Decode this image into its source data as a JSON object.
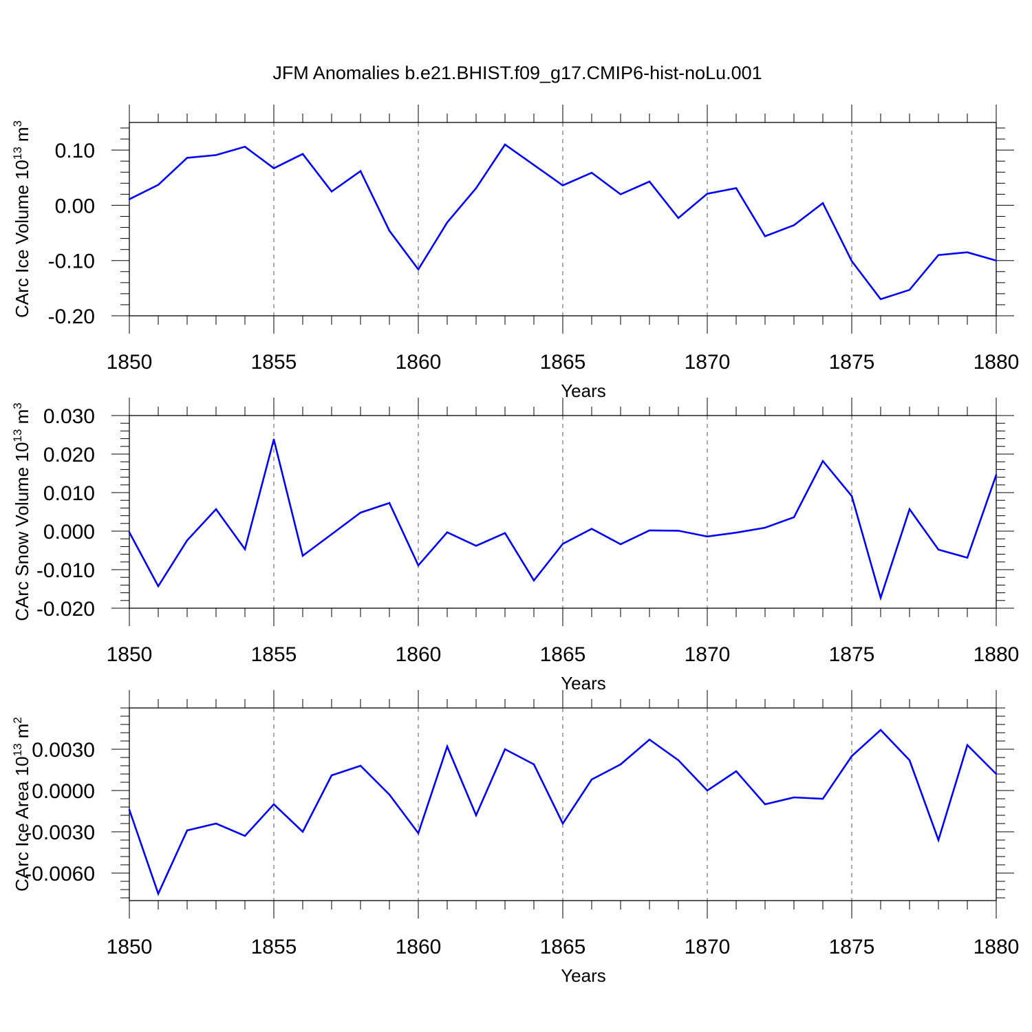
{
  "title": "JFM Anomalies b.e21.BHIST.f09_g17.CMIP6-hist-noLu.001",
  "colors": {
    "line": "#0000ff",
    "axis": "#000000",
    "grid": "#555555"
  },
  "chart_data": [
    {
      "type": "line",
      "xlabel": "Years",
      "ylabel": {
        "text": "CArc Ice Volume 10",
        "sup1": "13",
        "mid": " m",
        "sup2": "3"
      },
      "xlim": [
        1850,
        1880
      ],
      "xticks": [
        1850,
        1855,
        1860,
        1865,
        1870,
        1875,
        1880
      ],
      "ylim": [
        -0.2,
        0.15
      ],
      "yticks": [
        -0.2,
        -0.1,
        0.0,
        0.1
      ],
      "ytick_labels": [
        "-0.20",
        "-0.10",
        "0.00",
        "0.10"
      ],
      "x": [
        1850,
        1851,
        1852,
        1853,
        1854,
        1855,
        1856,
        1857,
        1858,
        1859,
        1860,
        1861,
        1862,
        1863,
        1864,
        1865,
        1866,
        1867,
        1868,
        1869,
        1870,
        1871,
        1872,
        1873,
        1874,
        1875,
        1876,
        1877,
        1878,
        1879,
        1880
      ],
      "series": [
        {
          "values": [
            0.011,
            0.037,
            0.086,
            0.091,
            0.106,
            0.067,
            0.093,
            0.025,
            0.062,
            -0.046,
            -0.116,
            -0.031,
            0.031,
            0.11,
            0.073,
            0.036,
            0.059,
            0.02,
            0.043,
            -0.023,
            0.021,
            0.031,
            -0.056,
            -0.036,
            0.004,
            -0.101,
            -0.17,
            -0.153,
            -0.09,
            -0.085,
            -0.1
          ]
        }
      ]
    },
    {
      "type": "line",
      "xlabel": "Years",
      "ylabel": {
        "text": "CArc Snow Volume 10",
        "sup1": "13",
        "mid": " m",
        "sup2": "3"
      },
      "xlim": [
        1850,
        1880
      ],
      "xticks": [
        1850,
        1855,
        1860,
        1865,
        1870,
        1875,
        1880
      ],
      "ylim": [
        -0.02,
        0.03
      ],
      "yticks": [
        -0.02,
        -0.01,
        0.0,
        0.01,
        0.02,
        0.03
      ],
      "ytick_labels": [
        "-0.020",
        "-0.010",
        "0.000",
        "0.010",
        "0.020",
        "0.030"
      ],
      "x": [
        1850,
        1851,
        1852,
        1853,
        1854,
        1855,
        1856,
        1857,
        1858,
        1859,
        1860,
        1861,
        1862,
        1863,
        1864,
        1865,
        1866,
        1867,
        1868,
        1869,
        1870,
        1871,
        1872,
        1873,
        1874,
        1875,
        1876,
        1877,
        1878,
        1879,
        1880
      ],
      "series": [
        {
          "values": [
            -0.0003,
            -0.0143,
            -0.0024,
            0.0057,
            -0.0047,
            0.0238,
            -0.0064,
            -0.0008,
            0.0048,
            0.0073,
            -0.0089,
            -0.0003,
            -0.0038,
            -0.0005,
            -0.0128,
            -0.0033,
            0.0006,
            -0.0034,
            0.0002,
            0.0001,
            -0.0014,
            -0.0004,
            0.0009,
            0.0036,
            0.0182,
            0.0091,
            -0.0173,
            0.0057,
            -0.0048,
            -0.0069,
            0.0146
          ]
        }
      ]
    },
    {
      "type": "line",
      "xlabel": "Years",
      "ylabel": {
        "text": "CArc Ice Area 10",
        "sup1": "13",
        "mid": " m",
        "sup2": "2"
      },
      "xlim": [
        1850,
        1880
      ],
      "xticks": [
        1850,
        1855,
        1860,
        1865,
        1870,
        1875,
        1880
      ],
      "ylim": [
        -0.008,
        0.006
      ],
      "yticks": [
        -0.006,
        -0.003,
        0.0,
        0.003
      ],
      "ytick_labels": [
        "-0.0060",
        "-0.0030",
        "0.0000",
        "0.0030"
      ],
      "x": [
        1850,
        1851,
        1852,
        1853,
        1854,
        1855,
        1856,
        1857,
        1858,
        1859,
        1860,
        1861,
        1862,
        1863,
        1864,
        1865,
        1866,
        1867,
        1868,
        1869,
        1870,
        1871,
        1872,
        1873,
        1874,
        1875,
        1876,
        1877,
        1878,
        1879,
        1880
      ],
      "series": [
        {
          "values": [
            -0.0014,
            -0.0075,
            -0.0029,
            -0.0024,
            -0.0033,
            -0.001,
            -0.003,
            0.0011,
            0.0018,
            -0.0003,
            -0.0031,
            0.0032,
            -0.0018,
            0.003,
            0.0019,
            -0.0024,
            0.0008,
            0.0019,
            0.0037,
            0.0022,
            0.0,
            0.0014,
            -0.001,
            -0.0005,
            -0.0006,
            0.0025,
            0.0044,
            0.0022,
            -0.0036,
            0.0033,
            0.0012
          ]
        }
      ]
    }
  ]
}
